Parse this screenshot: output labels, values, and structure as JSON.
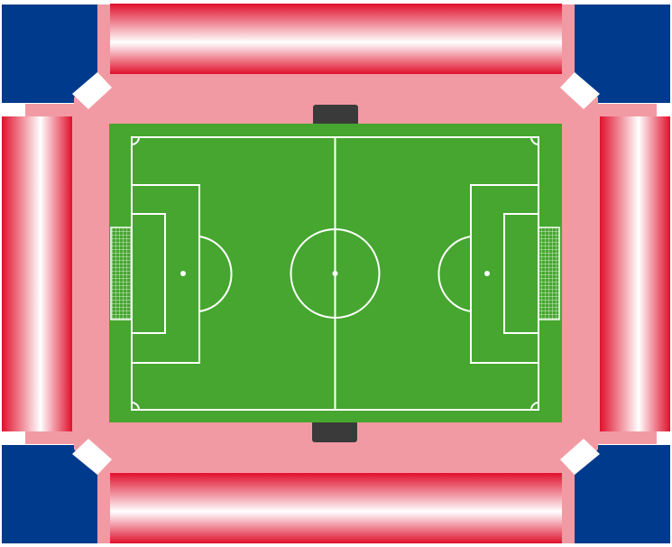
{
  "colors": {
    "background": "#ffffff",
    "corner_block": "#003a8c",
    "concourse": "#f29aa3",
    "stand_red": "#e0102c",
    "stand_white": "#ffffff",
    "pitch": "#46a62f",
    "pitch_lines": "#ffffff",
    "dugout": "#3a3a3a",
    "goal_net": "#ffffff"
  },
  "stands": [
    {
      "id": "north",
      "orientation": "horizontal"
    },
    {
      "id": "south",
      "orientation": "horizontal"
    },
    {
      "id": "west",
      "orientation": "vertical"
    },
    {
      "id": "east",
      "orientation": "vertical"
    }
  ],
  "icons": {
    "goal_left": "goal-net-icon",
    "goal_right": "goal-net-icon",
    "dugout_top": "dugout-icon",
    "dugout_bottom": "dugout-icon"
  }
}
